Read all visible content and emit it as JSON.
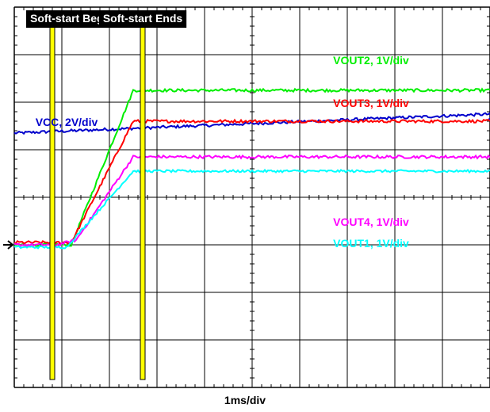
{
  "chart_data": {
    "type": "line",
    "xlabel": "1ms/div",
    "x_divisions": 10,
    "y_divisions": 8,
    "ground_ref_div": 3.0,
    "reference_markers": [
      {
        "label": "Soft-start Begins",
        "x_div": 0.8,
        "color": "#ffff00"
      },
      {
        "label": "Soft-start Ends",
        "x_div": 2.7,
        "color": "#ffff00"
      }
    ],
    "series": [
      {
        "name": "VCC, 2V/div",
        "color": "#0000cc",
        "noise": 0.03,
        "points": [
          [
            0,
            5.35
          ],
          [
            10,
            5.75
          ]
        ]
      },
      {
        "name": "VOUT2, 1V/div",
        "color": "#00ee00",
        "noise": 0.03,
        "points": [
          [
            0,
            3.0
          ],
          [
            1.2,
            3.0
          ],
          [
            2.5,
            6.25
          ],
          [
            10,
            6.25
          ]
        ]
      },
      {
        "name": "VOUT3, 1V/div",
        "color": "#ff0000",
        "noise": 0.03,
        "points": [
          [
            0,
            3.05
          ],
          [
            1.2,
            3.05
          ],
          [
            2.5,
            5.6
          ],
          [
            10,
            5.6
          ]
        ]
      },
      {
        "name": "VOUT4, 1V/div",
        "color": "#ff00ff",
        "noise": 0.03,
        "points": [
          [
            0,
            3.0
          ],
          [
            0.9,
            3.0
          ],
          [
            1.3,
            3.1
          ],
          [
            2.5,
            4.85
          ],
          [
            10,
            4.85
          ]
        ]
      },
      {
        "name": "VOUT1, 1V/div",
        "color": "#00ffff",
        "noise": 0.025,
        "points": [
          [
            0,
            2.95
          ],
          [
            1.1,
            2.95
          ],
          [
            2.5,
            4.55
          ],
          [
            10,
            4.55
          ]
        ]
      }
    ],
    "series_labels": [
      {
        "text": "VOUT2, 1V/div",
        "color": "#00ee00",
        "x_div": 7.5,
        "y_div": 6.8
      },
      {
        "text": "VCC, 2V/div",
        "color": "#0000cc",
        "x_div": 1.1,
        "y_div": 5.5
      },
      {
        "text": "VOUT3, 1V/div",
        "color": "#ff0000",
        "x_div": 7.5,
        "y_div": 5.9
      },
      {
        "text": "VOUT4, 1V/div",
        "color": "#ff00ff",
        "x_div": 7.5,
        "y_div": 3.4
      },
      {
        "text": "VOUT1, 1V/div",
        "color": "#00ffff",
        "x_div": 7.5,
        "y_div": 2.95
      }
    ]
  }
}
